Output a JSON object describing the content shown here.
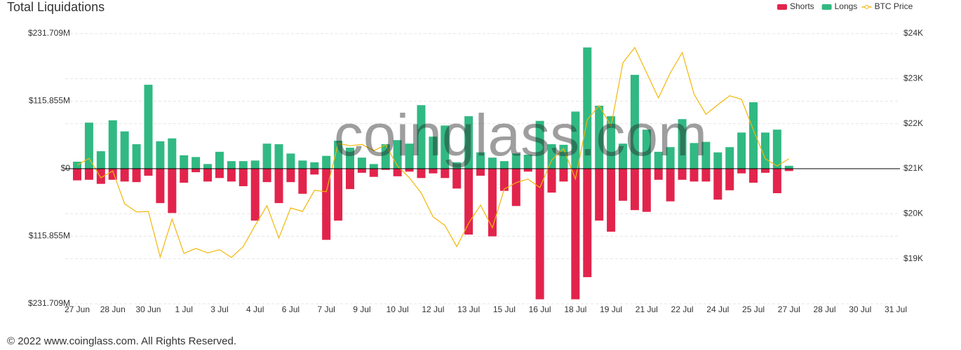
{
  "chart_data": {
    "type": "bar",
    "title": "Total Liquidations",
    "watermark": "coinglass.com",
    "footer": "© 2022 www.coinglass.com. All Rights Reserved.",
    "legend": "top-right",
    "grid": true,
    "categories": [
      "27 Jun",
      null,
      null,
      "28 Jun",
      null,
      null,
      "30 Jun",
      null,
      null,
      "1 Jul",
      null,
      null,
      "3 Jul",
      null,
      null,
      "4 Jul",
      null,
      null,
      "6 Jul",
      null,
      null,
      "7 Jul",
      null,
      null,
      "9 Jul",
      null,
      null,
      "10 Jul",
      null,
      null,
      "12 Jul",
      null,
      null,
      "13 Jul",
      null,
      null,
      "15 Jul",
      null,
      null,
      "16 Jul",
      null,
      null,
      "18 Jul",
      null,
      null,
      "19 Jul",
      null,
      null,
      "21 Jul",
      null,
      null,
      "22 Jul",
      null,
      null,
      "24 Jul",
      null,
      null,
      "25 Jul",
      null,
      null,
      "27 Jul",
      null,
      null,
      "28 Jul",
      null,
      null,
      "30 Jul",
      null,
      null,
      "31 Jul"
    ],
    "ylim": [
      -231.709,
      231.709
    ],
    "yticks": [
      {
        "value": -231.709,
        "label": "$231.709M"
      },
      {
        "value": -115.855,
        "label": "$115.855M"
      },
      {
        "value": 0,
        "label": "$0"
      },
      {
        "value": 115.855,
        "label": "$115.855M"
      },
      {
        "value": 231.709,
        "label": "$231.709M"
      }
    ],
    "y2lim": [
      18000,
      24000
    ],
    "y2ticks": [
      {
        "value": 19000,
        "label": "$19K"
      },
      {
        "value": 20000,
        "label": "$20K"
      },
      {
        "value": 21000,
        "label": "$21K"
      },
      {
        "value": 22000,
        "label": "$22K"
      },
      {
        "value": 23000,
        "label": "$23K"
      },
      {
        "value": 24000,
        "label": "$24K"
      }
    ],
    "series": [
      {
        "name": "Shorts",
        "color": "#e2244c",
        "kind": "bar",
        "values": [
          -20,
          -19,
          -26,
          -19,
          -22,
          -23,
          -12,
          -59,
          -76,
          -24,
          -6,
          -22,
          -16,
          -22,
          -30,
          -89,
          -23,
          -59,
          -23,
          -43,
          -10,
          -122,
          -89,
          -35,
          -7,
          -14,
          -2,
          -13,
          -5,
          -16,
          -8,
          -16,
          -34,
          -113,
          -12,
          -116,
          -38,
          -64,
          -5,
          -224,
          -41,
          -22,
          -224,
          -186,
          -89,
          -108,
          -55,
          -71,
          -74,
          -19,
          -56,
          -19,
          -22,
          -22,
          -53,
          -37,
          -8,
          -24,
          -7,
          -42,
          -4,
          null,
          null,
          null,
          null,
          null,
          null,
          null,
          null,
          null
        ]
      },
      {
        "name": "Longs",
        "color": "#31b983",
        "kind": "bar",
        "values": [
          12,
          79,
          30,
          83,
          64,
          42,
          144,
          47,
          52,
          23,
          20,
          8,
          29,
          13,
          13,
          14,
          43,
          42,
          26,
          14,
          11,
          22,
          48,
          36,
          19,
          8,
          42,
          49,
          43,
          109,
          55,
          74,
          11,
          90,
          28,
          19,
          13,
          26,
          24,
          82,
          42,
          41,
          98,
          208,
          108,
          90,
          43,
          161,
          67,
          29,
          37,
          85,
          44,
          46,
          28,
          37,
          62,
          114,
          62,
          67,
          5,
          null,
          null,
          null,
          null,
          null,
          null,
          null,
          null,
          null
        ]
      },
      {
        "name": "BTC Price",
        "color": "#f2b70a",
        "kind": "line",
        "axis": "y2",
        "values": [
          21080,
          21230,
          20800,
          20950,
          20220,
          20040,
          20050,
          19040,
          19880,
          19120,
          19230,
          19130,
          19200,
          19030,
          19270,
          19740,
          20180,
          19460,
          20130,
          20050,
          20520,
          20490,
          21560,
          21510,
          21540,
          21400,
          21530,
          21060,
          20800,
          20460,
          19930,
          19740,
          19270,
          19790,
          20190,
          19690,
          20550,
          20690,
          20770,
          20580,
          21190,
          21450,
          20770,
          22090,
          22400,
          21950,
          23350,
          23690,
          23130,
          22570,
          23130,
          23580,
          22650,
          22210,
          22420,
          22620,
          22540,
          21860,
          21220,
          21060,
          21220,
          null,
          null,
          null,
          null,
          null,
          null,
          null,
          null,
          null
        ]
      }
    ]
  }
}
